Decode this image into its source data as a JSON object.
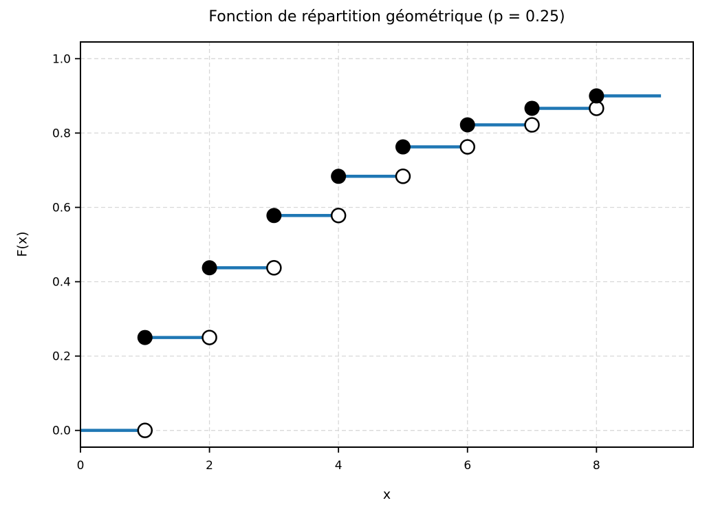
{
  "chart_data": {
    "type": "line",
    "variant": "step-function-cdf",
    "title": "Fonction de répartition géométrique (p = 0.25)",
    "xlabel": "x",
    "ylabel": "F(x)",
    "p_parameter": 0.25,
    "xlim": [
      0,
      9.5
    ],
    "ylim": [
      -0.045,
      1.045
    ],
    "xticks": [
      0,
      2,
      4,
      6,
      8
    ],
    "yticks": [
      0.0,
      0.2,
      0.4,
      0.6,
      0.8,
      1.0
    ],
    "grid": true,
    "grid_style": "dashed",
    "legend": "none",
    "segments": [
      {
        "x0": 0,
        "x1": 1,
        "y": 0
      },
      {
        "x0": 1,
        "x1": 2,
        "y": 0.25
      },
      {
        "x0": 2,
        "x1": 3,
        "y": 0.4375
      },
      {
        "x0": 3,
        "x1": 4,
        "y": 0.5781
      },
      {
        "x0": 4,
        "x1": 5,
        "y": 0.6836
      },
      {
        "x0": 5,
        "x1": 6,
        "y": 0.7627
      },
      {
        "x0": 6,
        "x1": 7,
        "y": 0.822
      },
      {
        "x0": 7,
        "x1": 8,
        "y": 0.8665
      },
      {
        "x0": 8,
        "x1": 9,
        "y": 0.8999
      }
    ],
    "closed_points": [
      {
        "x": 1,
        "y": 0.25
      },
      {
        "x": 2,
        "y": 0.4375
      },
      {
        "x": 3,
        "y": 0.5781
      },
      {
        "x": 4,
        "y": 0.6836
      },
      {
        "x": 5,
        "y": 0.7627
      },
      {
        "x": 6,
        "y": 0.822
      },
      {
        "x": 7,
        "y": 0.8665
      },
      {
        "x": 8,
        "y": 0.8999
      }
    ],
    "open_points": [
      {
        "x": 1,
        "y": 0
      },
      {
        "x": 2,
        "y": 0.25
      },
      {
        "x": 3,
        "y": 0.4375
      },
      {
        "x": 4,
        "y": 0.5781
      },
      {
        "x": 5,
        "y": 0.6836
      },
      {
        "x": 6,
        "y": 0.7627
      },
      {
        "x": 7,
        "y": 0.822
      },
      {
        "x": 8,
        "y": 0.8665
      }
    ],
    "colors": {
      "line": "#1f77b4",
      "closed_marker_fill": "#000000",
      "open_marker_fill": "#ffffff",
      "marker_edge": "#000000",
      "grid": "#d8d8d8",
      "spine": "#000000",
      "text": "#000000",
      "background": "#ffffff"
    }
  }
}
